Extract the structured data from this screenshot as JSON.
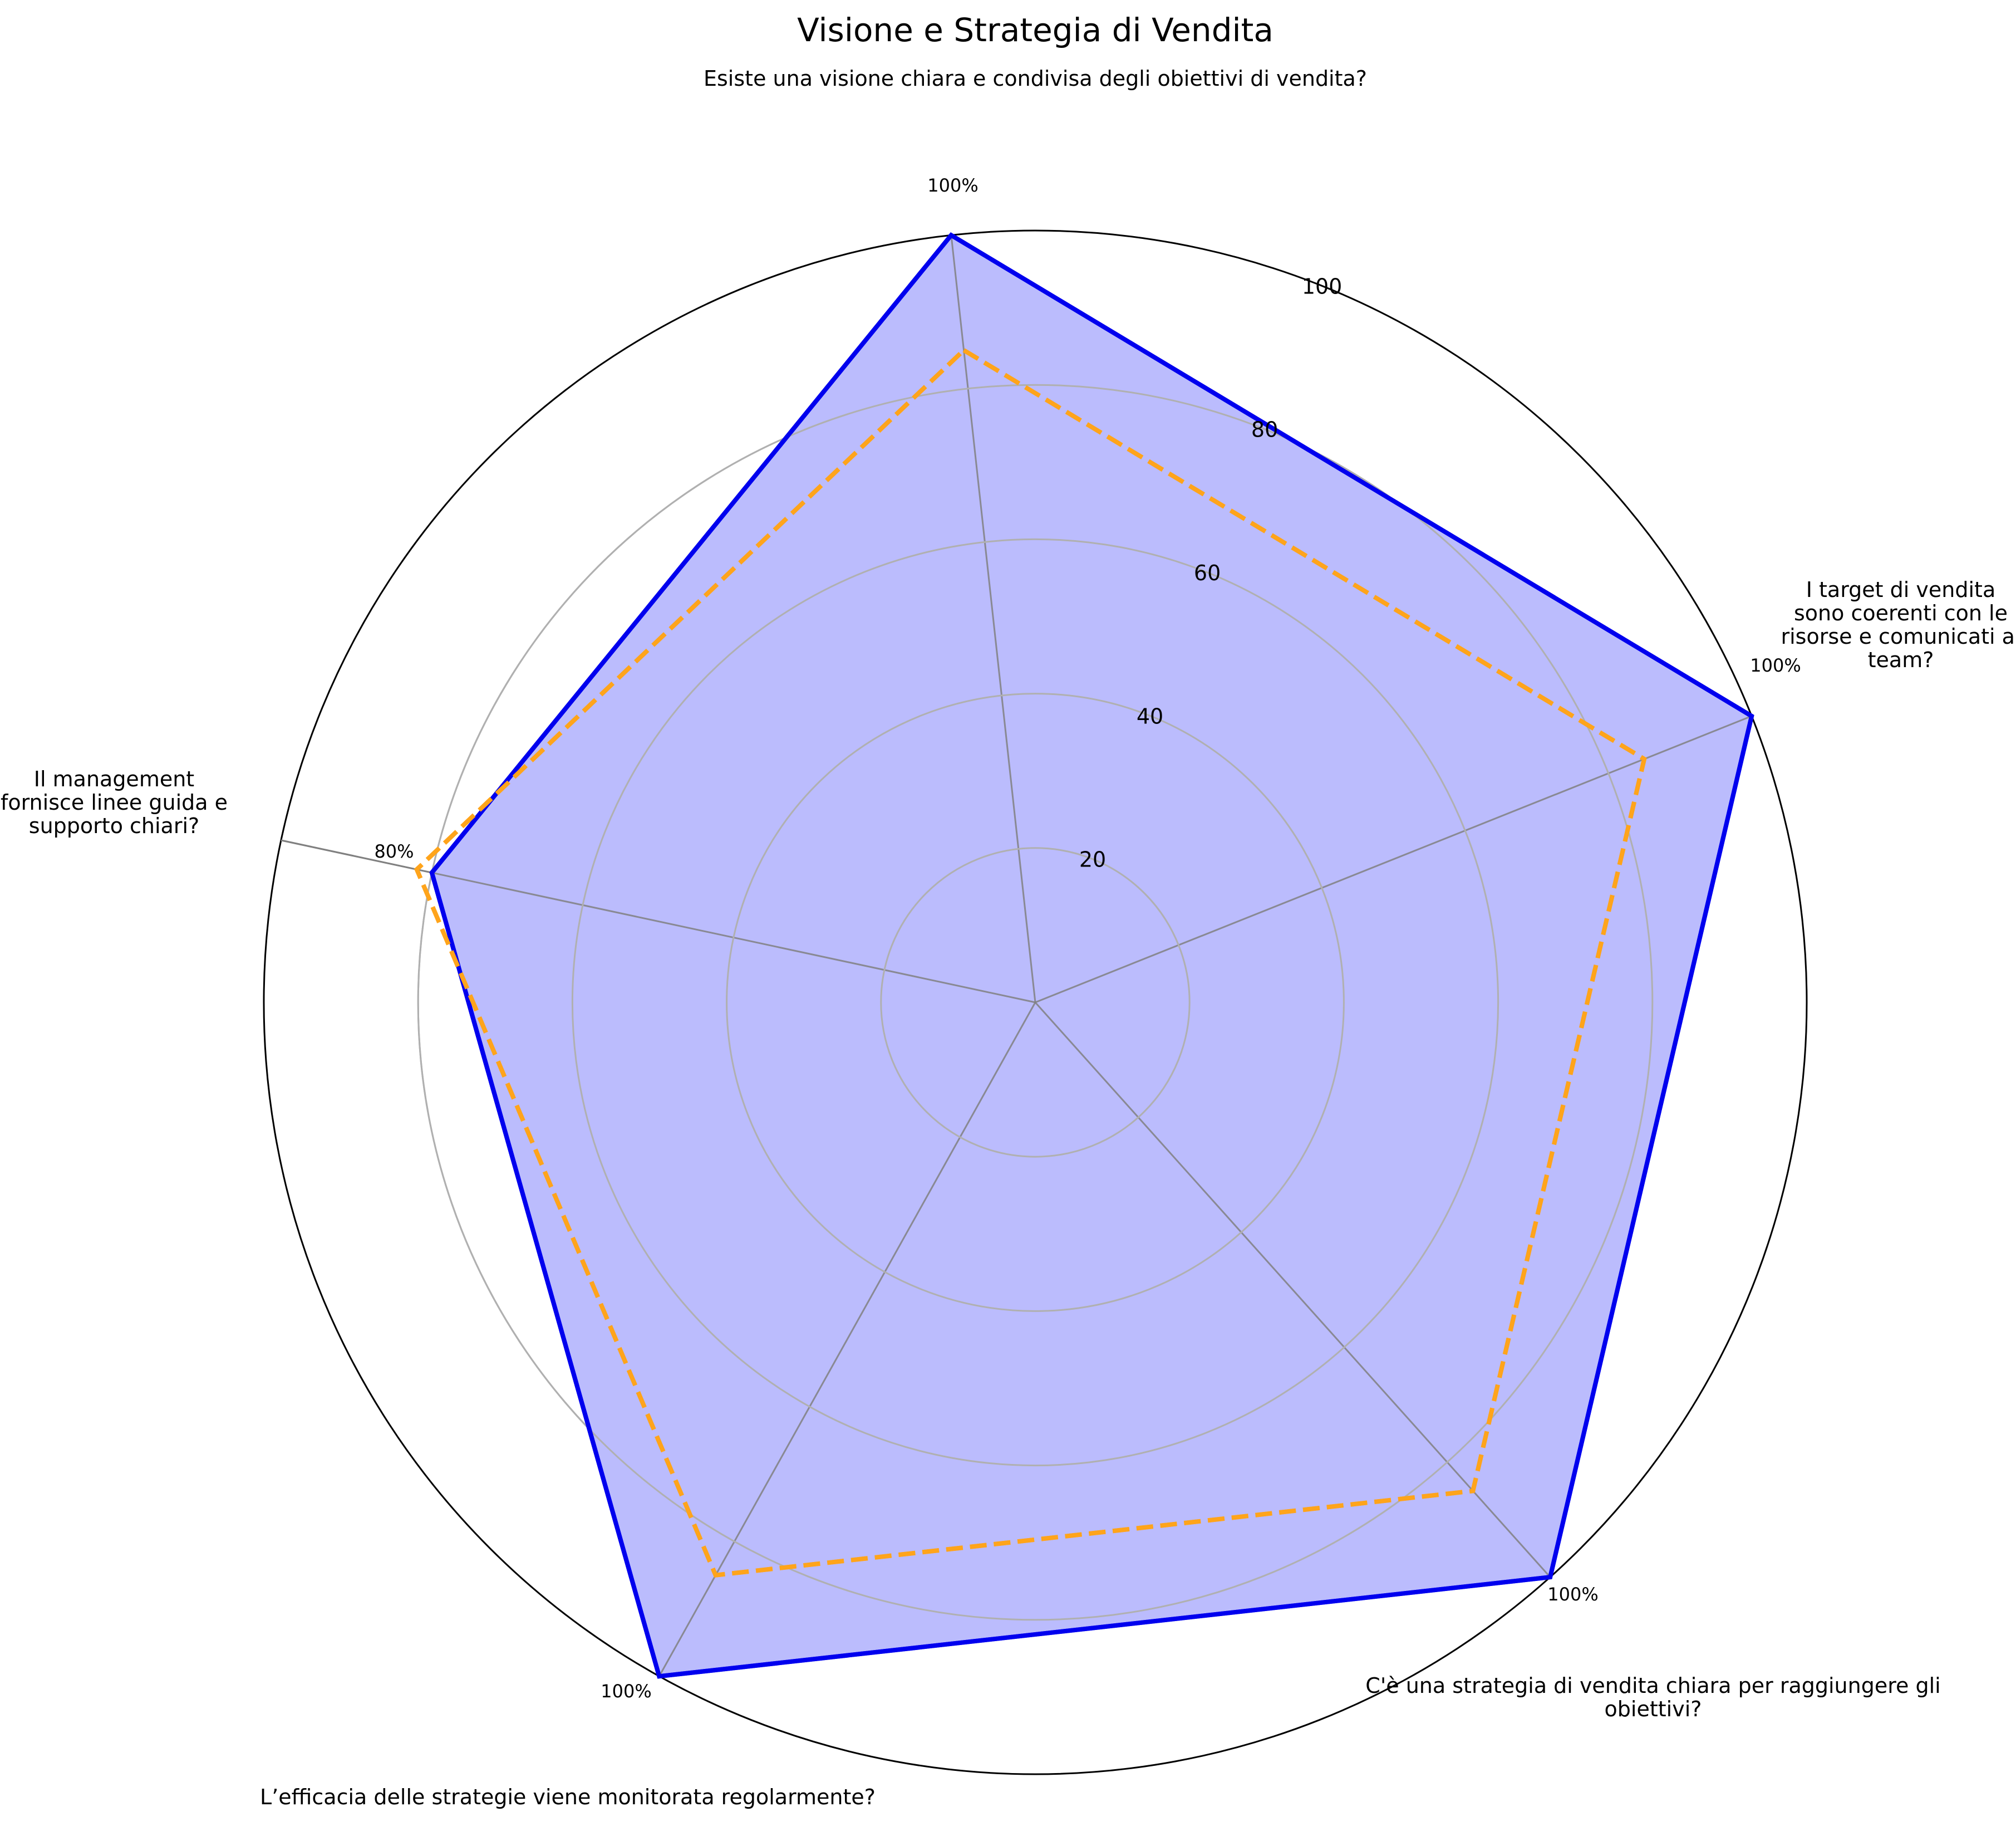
{
  "chart_data": {
    "type": "radar",
    "title": "Visione e Strategia di Vendita",
    "categories": [
      [
        "Esiste una visione chiara e condivisa degli obiettivi di vendita?"
      ],
      [
        "I target di vendita",
        "sono coerenti con le",
        "risorse e comunicati al",
        "team?"
      ],
      [
        "C'è una strategia di vendita chiara per raggiungere gli",
        "obiettivi?"
      ],
      [
        "L’efficacia delle strategie viene monitorata regolarmente?"
      ],
      [
        "Il management",
        "fornisce linee guida e",
        "supporto chiari?"
      ]
    ],
    "series": [
      {
        "values": [
          100,
          100,
          100,
          100,
          80
        ],
        "color": "#0000ee",
        "fill": "#bbbcfd",
        "line_style": "solid"
      },
      {
        "values": [
          85,
          85,
          85,
          85,
          82
        ],
        "color": "#ffa41b",
        "line_style": "dashed"
      }
    ],
    "point_labels": [
      "100%",
      "100%",
      "100%",
      "100%",
      "80%"
    ],
    "r_ticks": [
      20,
      40,
      60,
      80,
      100
    ],
    "r_tick_labels": [
      "20",
      "40",
      "60",
      "80",
      "100"
    ],
    "rlim": [
      0,
      100
    ],
    "grid": true
  }
}
